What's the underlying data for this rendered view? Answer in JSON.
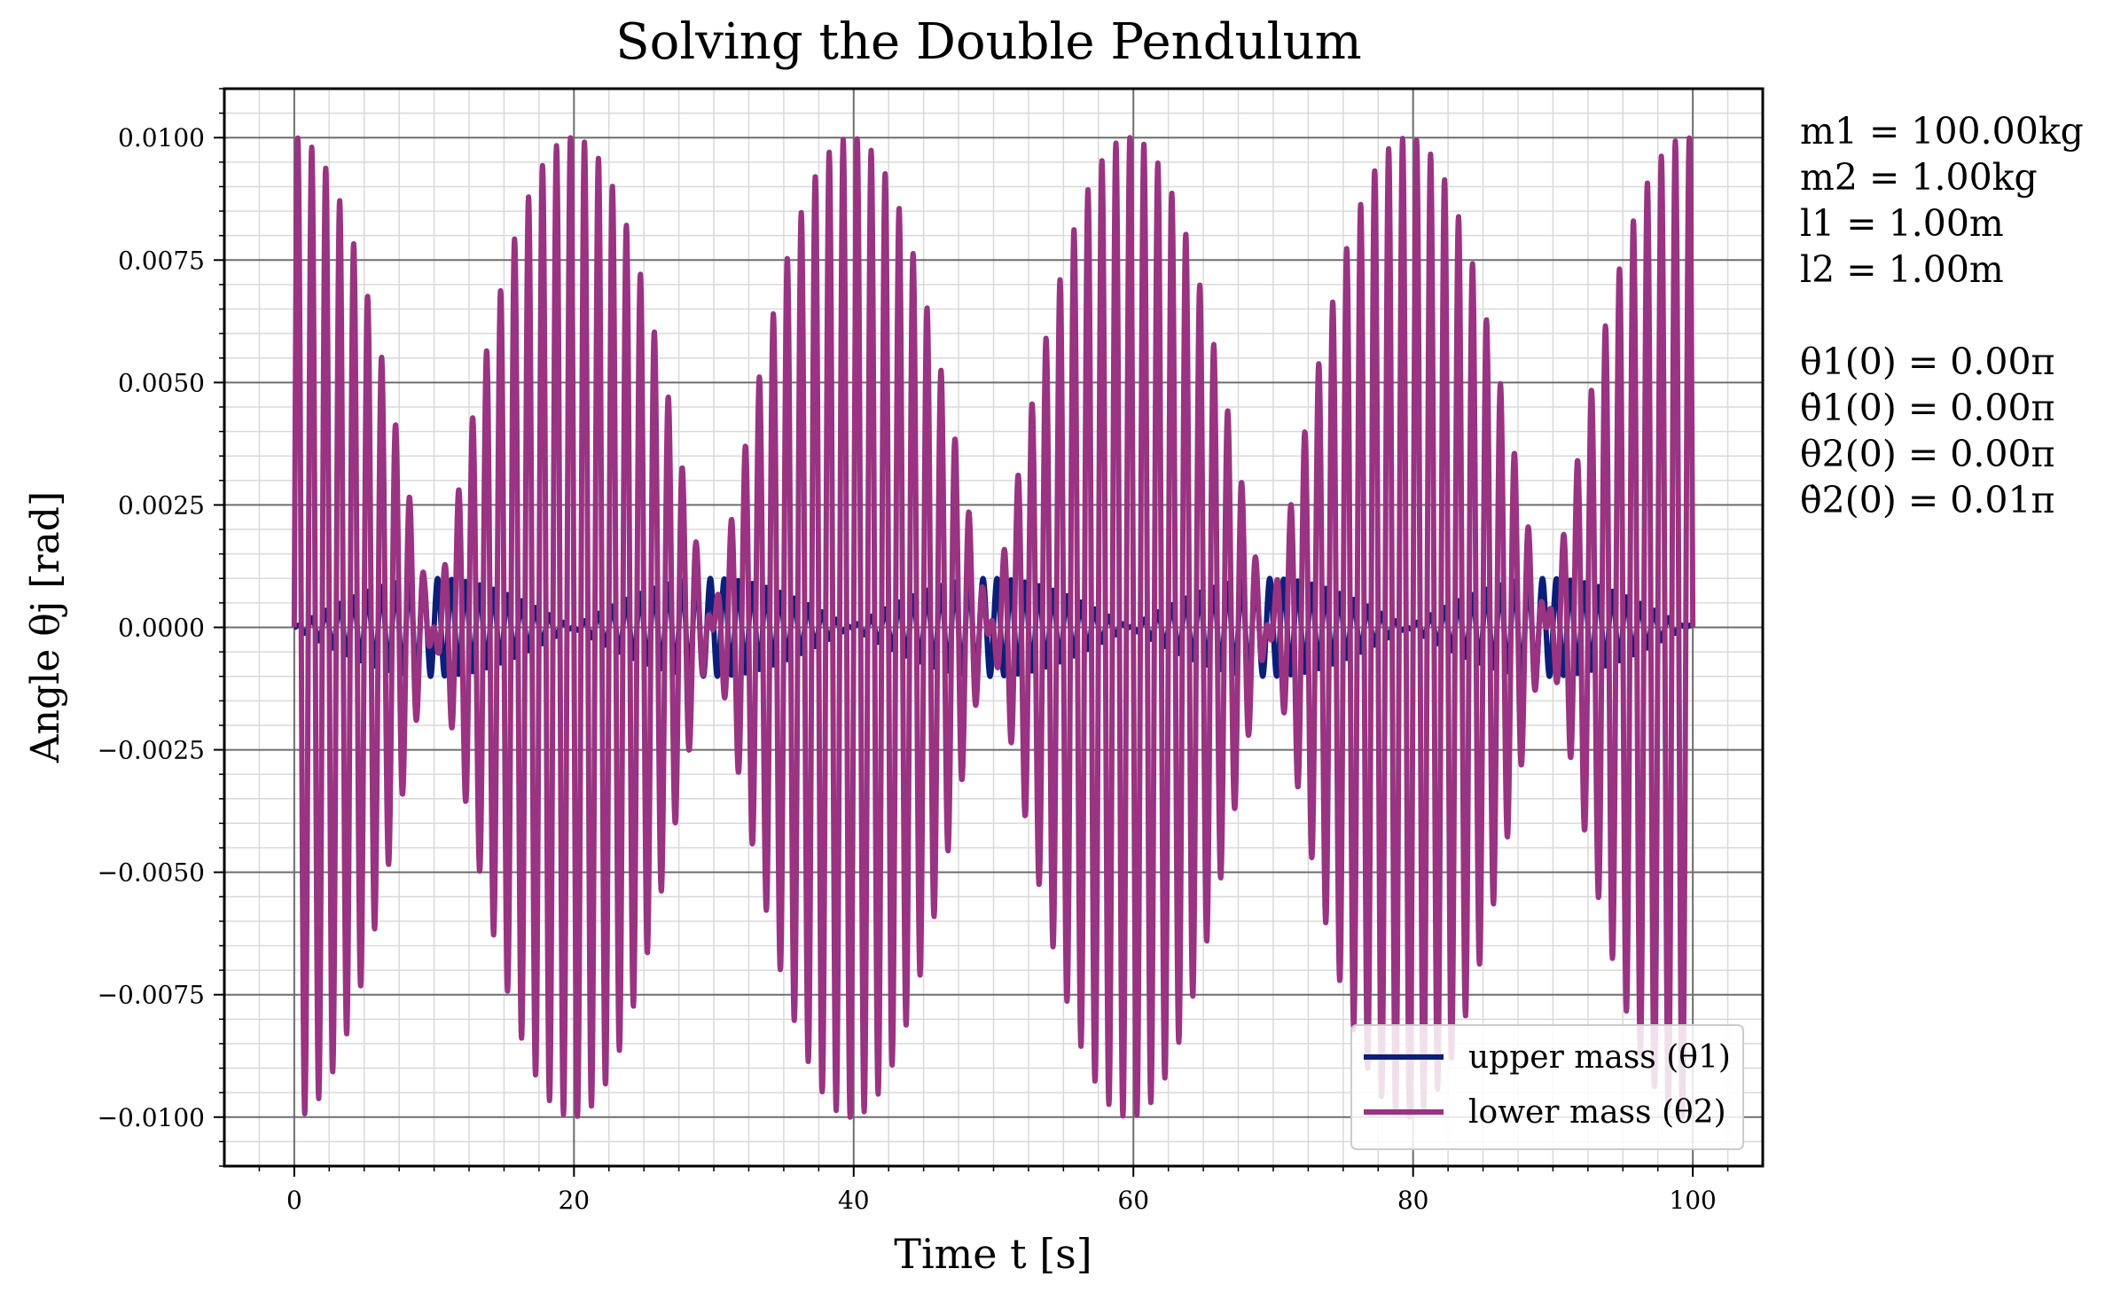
{
  "chart_data": {
    "type": "line",
    "title": "Solving the Double Pendulum",
    "xlabel": "Time t [s]",
    "ylabel": "Angle θj [rad]",
    "xlim": [
      -5,
      105
    ],
    "ylim": [
      -0.011,
      0.011
    ],
    "x_ticks": [
      0,
      20,
      40,
      60,
      80,
      100
    ],
    "x_tick_labels": [
      "0",
      "20",
      "40",
      "60",
      "80",
      "100"
    ],
    "y_ticks": [
      0.01,
      0.0075,
      0.005,
      0.0025,
      0.0,
      -0.0025,
      -0.005,
      -0.0075,
      -0.01
    ],
    "y_tick_labels": [
      "0.0100",
      "0.0075",
      "0.0050",
      "0.0025",
      "0.0000",
      "−0.0025",
      "−0.0050",
      "−0.0075",
      "−0.0100"
    ],
    "grid": "major and minor",
    "legend_position": "bottom-right",
    "series": [
      {
        "name": "upper mass (θ1)",
        "color": "#0b1f78",
        "peak_abs": 0.001,
        "fast_period_s": 1.0,
        "beat_period_s": 19.9,
        "t_start": 0,
        "t_end": 100,
        "samples": 4000
      },
      {
        "name": "lower mass (θ2)",
        "color": "#993382",
        "peak_abs": 0.01,
        "fast_period_s": 1.0,
        "beat_period_s": 19.9,
        "t_start": 0,
        "t_end": 100,
        "samples": 4000
      }
    ]
  },
  "parameters": {
    "masses_lengths": [
      "m1 = 100.00kg",
      "m2 = 1.00kg",
      "l1 = 1.00m",
      "l2 = 1.00m"
    ],
    "initial_conditions": [
      "θ1(0) = 0.00π",
      "θ̇1(0) = 0.00π",
      "θ2(0) = 0.00π",
      "θ̇2(0) = 0.01π"
    ]
  }
}
